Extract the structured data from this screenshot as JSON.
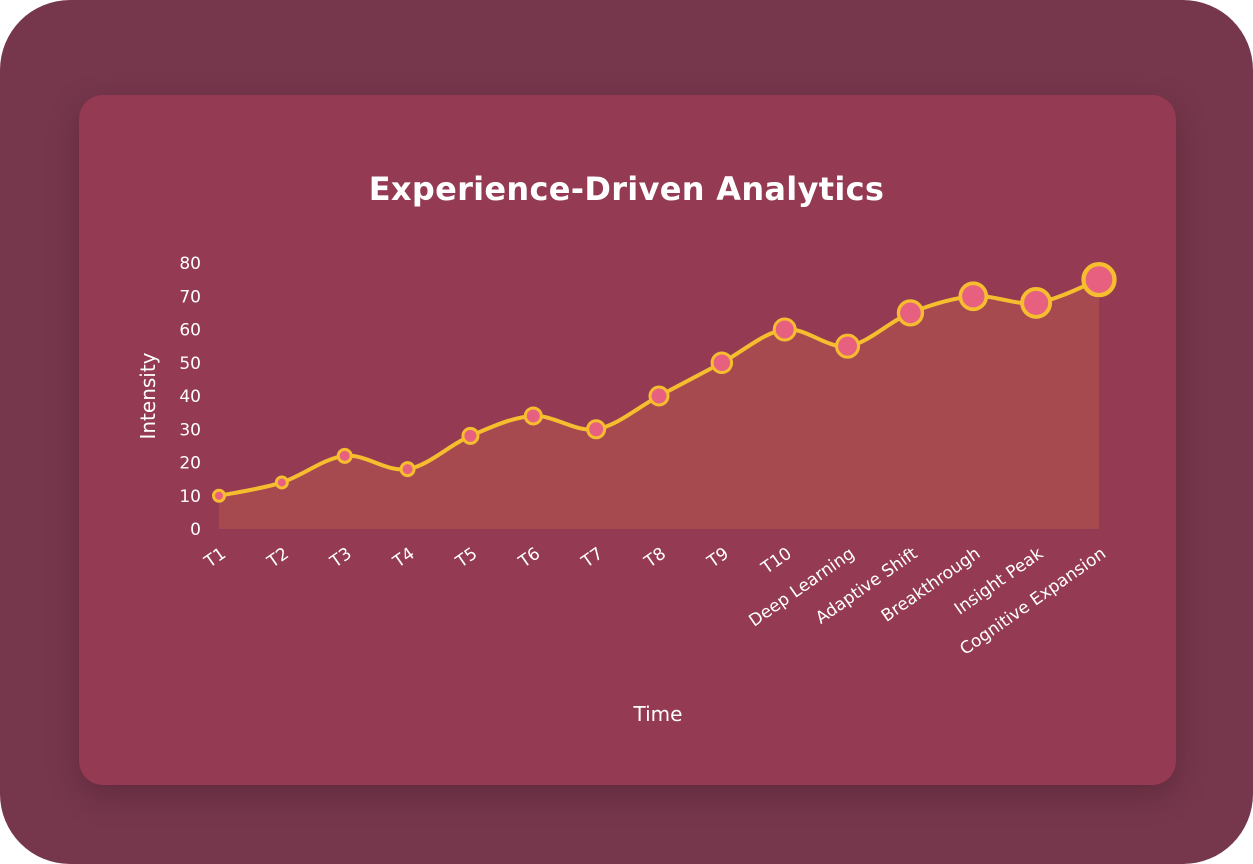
{
  "colors": {
    "outer_bg": "#76374c",
    "card_bg": "#943a53",
    "line": "#f6bd2f",
    "area": "#a84d4f",
    "marker_fill": "#e8607f",
    "marker_stroke": "#f6bd2f",
    "text": "#ffffff"
  },
  "chart_data": {
    "type": "line",
    "title": "Experience-Driven Analytics",
    "xlabel": "Time",
    "ylabel": "Intensity",
    "ylim": [
      0,
      80
    ],
    "yticks": [
      0,
      10,
      20,
      30,
      40,
      50,
      60,
      70,
      80
    ],
    "categories": [
      "T1",
      "T2",
      "T3",
      "T4",
      "T5",
      "T6",
      "T7",
      "T8",
      "T9",
      "T10",
      "Deep Learning",
      "Adaptive Shift",
      "Breakthrough",
      "Insight Peak",
      "Cognitive Expansion"
    ],
    "values": [
      10,
      14,
      22,
      18,
      28,
      34,
      30,
      40,
      50,
      60,
      55,
      65,
      70,
      68,
      75
    ],
    "marker_size": [
      1,
      1,
      1.2,
      1.2,
      1.4,
      1.5,
      1.6,
      1.7,
      1.85,
      2.0,
      2.1,
      2.3,
      2.5,
      2.7,
      3.0
    ],
    "area_fill": true,
    "grid": false
  }
}
